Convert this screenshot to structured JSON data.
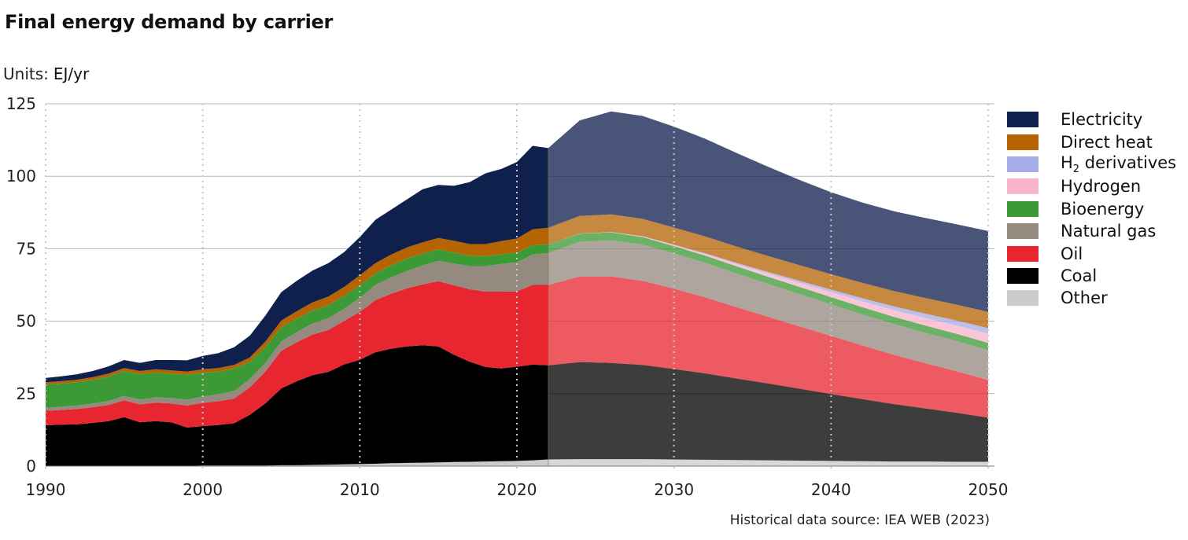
{
  "title": "Final energy demand by carrier",
  "units_label": "Units:",
  "units_value": "EJ/yr",
  "source": "Historical data source: IEA WEB (2023)",
  "chart_data": {
    "type": "area",
    "stacked": true,
    "title": "Final energy demand by carrier",
    "xlabel": "",
    "ylabel": "EJ/yr",
    "xlim": [
      1990,
      2050
    ],
    "ylim": [
      0,
      125
    ],
    "x_ticks": [
      1990,
      2000,
      2010,
      2020,
      2030,
      2040,
      2050
    ],
    "y_ticks": [
      0,
      25,
      50,
      75,
      100,
      125
    ],
    "historical_end": 2022,
    "x": [
      1990,
      1991,
      1992,
      1993,
      1994,
      1995,
      1996,
      1997,
      1998,
      1999,
      2000,
      2001,
      2002,
      2003,
      2004,
      2005,
      2006,
      2007,
      2008,
      2009,
      2010,
      2011,
      2012,
      2013,
      2014,
      2015,
      2016,
      2017,
      2018,
      2019,
      2020,
      2021,
      2022,
      2024,
      2026,
      2028,
      2030,
      2032,
      2034,
      2036,
      2038,
      2040,
      2042,
      2044,
      2046,
      2048,
      2050
    ],
    "series": [
      {
        "name": "Other",
        "color": "#cccccc",
        "values": [
          0.1,
          0.1,
          0.1,
          0.1,
          0.1,
          0.1,
          0.1,
          0.1,
          0.1,
          0.1,
          0.2,
          0.2,
          0.2,
          0.2,
          0.2,
          0.3,
          0.3,
          0.4,
          0.5,
          0.6,
          0.7,
          0.8,
          1.0,
          1.1,
          1.2,
          1.3,
          1.4,
          1.5,
          1.6,
          1.7,
          1.8,
          2.0,
          2.3,
          2.4,
          2.4,
          2.4,
          2.3,
          2.2,
          2.1,
          2.0,
          1.9,
          1.8,
          1.7,
          1.6,
          1.6,
          1.5,
          1.5
        ]
      },
      {
        "name": "Coal",
        "color": "#000000",
        "values": [
          14.0,
          14.2,
          14.3,
          14.8,
          15.4,
          16.8,
          15.0,
          15.4,
          15.0,
          13.2,
          13.6,
          14.0,
          14.6,
          17.5,
          21.5,
          26.5,
          29.0,
          31.0,
          32.0,
          34.5,
          36.0,
          38.5,
          39.5,
          40.2,
          40.5,
          40.0,
          37.0,
          34.5,
          32.6,
          32.0,
          32.5,
          33.0,
          32.5,
          33.5,
          33.2,
          32.5,
          31.2,
          29.8,
          28.1,
          26.5,
          24.8,
          23.1,
          21.4,
          19.8,
          18.3,
          16.9,
          15.2
        ]
      },
      {
        "name": "Oil",
        "color": "#e8262f",
        "values": [
          5.0,
          5.1,
          5.3,
          5.4,
          5.6,
          5.8,
          6.2,
          6.4,
          6.5,
          7.6,
          8.0,
          8.2,
          8.5,
          9.5,
          11.0,
          13.0,
          13.5,
          14.0,
          14.5,
          15.0,
          16.5,
          18.0,
          19.0,
          20.0,
          21.0,
          22.5,
          24.0,
          25.0,
          26.0,
          26.5,
          26.0,
          27.5,
          27.7,
          29.5,
          29.8,
          29.0,
          27.7,
          26.2,
          24.6,
          23.0,
          21.5,
          20.0,
          18.5,
          17.0,
          15.6,
          14.3,
          13.0
        ]
      },
      {
        "name": "Natural gas",
        "color": "#958a80",
        "values": [
          1.0,
          1.1,
          1.2,
          1.3,
          1.4,
          1.5,
          1.7,
          1.8,
          1.9,
          2.0,
          2.2,
          2.4,
          2.6,
          2.8,
          3.0,
          3.2,
          3.5,
          3.8,
          4.0,
          4.2,
          4.8,
          5.2,
          5.6,
          6.0,
          6.5,
          7.0,
          7.5,
          8.0,
          8.8,
          9.5,
          10.0,
          10.5,
          11.0,
          12.0,
          12.5,
          12.5,
          12.2,
          11.9,
          11.6,
          11.3,
          11.1,
          10.9,
          10.7,
          10.6,
          10.5,
          10.4,
          10.3
        ]
      },
      {
        "name": "Bioenergy",
        "color": "#3c9a36",
        "values": [
          8.0,
          8.0,
          8.0,
          8.2,
          8.4,
          8.6,
          8.8,
          8.6,
          8.4,
          8.6,
          8.2,
          7.8,
          7.8,
          6.0,
          5.5,
          5.0,
          4.6,
          4.5,
          4.5,
          4.4,
          4.3,
          4.0,
          4.2,
          4.3,
          4.1,
          4.0,
          3.8,
          3.6,
          3.4,
          3.4,
          3.4,
          3.2,
          3.0,
          2.8,
          2.7,
          2.6,
          2.5,
          2.5,
          2.5,
          2.5,
          2.5,
          2.5,
          2.5,
          2.5,
          2.5,
          2.5,
          2.5
        ]
      },
      {
        "name": "Hydrogen",
        "color": "#f8b4cb",
        "values": [
          0,
          0,
          0,
          0,
          0,
          0,
          0,
          0,
          0,
          0,
          0,
          0,
          0,
          0,
          0,
          0,
          0,
          0,
          0,
          0,
          0,
          0,
          0,
          0,
          0,
          0,
          0,
          0,
          0,
          0,
          0,
          0,
          0,
          0.05,
          0.1,
          0.2,
          0.35,
          0.55,
          0.8,
          1.1,
          1.4,
          1.7,
          2.0,
          2.3,
          2.6,
          2.9,
          3.2
        ]
      },
      {
        "name": "H2 derivatives",
        "color": "#a5acea",
        "values": [
          0,
          0,
          0,
          0,
          0,
          0,
          0,
          0,
          0,
          0,
          0,
          0,
          0,
          0,
          0,
          0,
          0,
          0,
          0,
          0,
          0,
          0,
          0,
          0,
          0,
          0,
          0,
          0,
          0,
          0,
          0,
          0,
          0,
          0.02,
          0.05,
          0.1,
          0.15,
          0.25,
          0.4,
          0.55,
          0.7,
          0.9,
          1.1,
          1.3,
          1.5,
          1.7,
          1.9
        ]
      },
      {
        "name": "Direct heat",
        "color": "#b66402",
        "values": [
          0.8,
          0.8,
          0.9,
          0.9,
          1.0,
          1.0,
          1.0,
          1.1,
          1.1,
          1.1,
          1.2,
          1.2,
          1.2,
          1.5,
          1.8,
          2.2,
          2.6,
          2.8,
          3.0,
          3.1,
          3.5,
          3.5,
          3.7,
          3.8,
          3.9,
          3.9,
          4.0,
          4.0,
          4.2,
          4.5,
          4.8,
          5.5,
          5.7,
          6.0,
          6.1,
          6.0,
          5.9,
          5.8,
          5.6,
          5.5,
          5.4,
          5.3,
          5.3,
          5.3,
          5.4,
          5.5,
          5.6
        ]
      },
      {
        "name": "Electricity",
        "color": "#10204d",
        "values": [
          1.5,
          1.7,
          1.9,
          2.1,
          2.5,
          2.8,
          2.8,
          3.2,
          3.6,
          3.9,
          4.6,
          5.2,
          6.1,
          7.5,
          9.0,
          9.8,
          10.5,
          11.0,
          11.5,
          12.0,
          13.2,
          15.0,
          15.5,
          16.6,
          18.3,
          18.3,
          19.0,
          21.4,
          24.4,
          24.9,
          26.4,
          28.8,
          27.5,
          33.0,
          35.5,
          35.5,
          34.8,
          33.7,
          32.3,
          30.8,
          29.4,
          28.3,
          27.7,
          27.5,
          27.6,
          27.7,
          27.9
        ]
      }
    ]
  },
  "legend": [
    {
      "label": "Electricity",
      "color": "#10204d"
    },
    {
      "label": "Direct heat",
      "color": "#b66402"
    },
    {
      "label_main": "H",
      "label_sub": "2",
      "label_rest": " derivatives",
      "color": "#a5acea"
    },
    {
      "label": "Hydrogen",
      "color": "#f8b4cb"
    },
    {
      "label": "Bioenergy",
      "color": "#3c9a36"
    },
    {
      "label": "Natural gas",
      "color": "#958a80"
    },
    {
      "label": "Oil",
      "color": "#e8262f"
    },
    {
      "label": "Coal",
      "color": "#000000"
    },
    {
      "label": "Other",
      "color": "#cccccc"
    }
  ]
}
